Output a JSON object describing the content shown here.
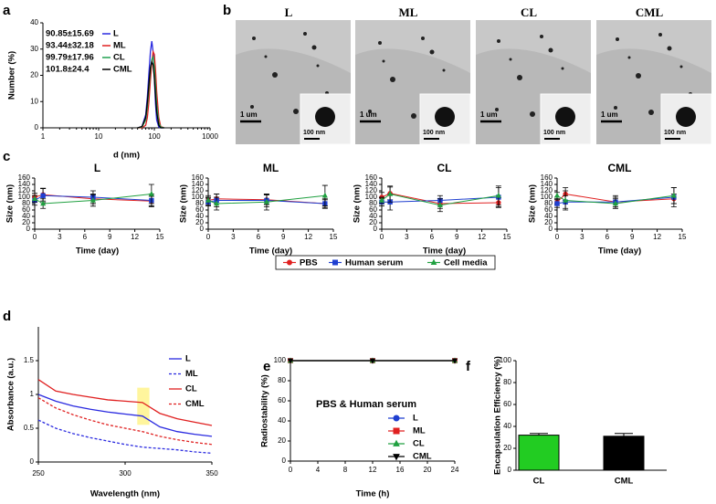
{
  "panel_labels": [
    "a",
    "b",
    "c",
    "d",
    "e",
    "f"
  ],
  "tem": {
    "titles": [
      "L",
      "ML",
      "CL",
      "CML"
    ],
    "scale_bar": "1 um",
    "inset_scale_bar": "100 nm"
  },
  "chart_data": [
    {
      "type": "line",
      "xlabel": "d (nm)",
      "ylabel": "Number (%)",
      "xscale": "log",
      "xlim": [
        1,
        1000
      ],
      "xticks": [
        1,
        10,
        100,
        1000
      ],
      "ylim": [
        0,
        40
      ],
      "yticks": [
        0,
        10,
        20,
        30,
        40
      ],
      "x": [
        50,
        60,
        70,
        75,
        80,
        85,
        90,
        95,
        100,
        105,
        110,
        120,
        130,
        150
      ],
      "series": [
        {
          "name": "L",
          "stat": "90.85±15.69",
          "color": "#2a2ae0",
          "values": [
            0,
            0.5,
            5,
            12,
            21,
            29,
            33,
            29,
            19,
            9,
            3,
            0.3,
            0,
            0
          ]
        },
        {
          "name": "ML",
          "stat": "93.44±32.18",
          "color": "#e02020",
          "values": [
            0,
            0,
            1,
            4,
            10,
            18,
            25,
            29,
            28,
            22,
            14,
            4,
            0.5,
            0
          ]
        },
        {
          "name": "CL",
          "stat": "99.79±17.96",
          "color": "#20a050",
          "values": [
            0,
            0.3,
            3,
            8,
            15,
            22,
            26,
            27,
            23,
            16,
            9,
            2,
            0.3,
            0
          ]
        },
        {
          "name": "CML",
          "stat": "101.8±24.4",
          "color": "#000000",
          "values": [
            0,
            0.5,
            4,
            10,
            17,
            23,
            25,
            24,
            19,
            12,
            6,
            1,
            0,
            0
          ]
        }
      ]
    },
    {
      "type": "errorline",
      "title": "L",
      "xlabel": "Time (day)",
      "ylabel": "Size (nm)",
      "xlim": [
        0,
        15
      ],
      "xticks": [
        0,
        3,
        6,
        9,
        12,
        15
      ],
      "ylim": [
        0,
        160
      ],
      "yticks": [
        0,
        20,
        40,
        60,
        80,
        100,
        120,
        140,
        160
      ],
      "x": [
        0,
        1,
        7,
        14
      ],
      "series": [
        {
          "name": "PBS",
          "color": "#e02020",
          "marker": "circle",
          "values": [
            100,
            108,
            95,
            88
          ],
          "errors": [
            12,
            20,
            15,
            15
          ]
        },
        {
          "name": "Human serum",
          "color": "#1f3fd0",
          "marker": "square",
          "values": [
            90,
            105,
            100,
            90
          ],
          "errors": [
            15,
            22,
            20,
            20
          ]
        },
        {
          "name": "Cell media",
          "color": "#20a040",
          "marker": "triangle",
          "values": [
            95,
            80,
            90,
            110
          ],
          "errors": [
            10,
            15,
            18,
            30
          ]
        }
      ]
    },
    {
      "type": "errorline",
      "title": "ML",
      "xlabel": "Time (day)",
      "ylabel": "Size (nm)",
      "xlim": [
        0,
        15
      ],
      "xticks": [
        0,
        3,
        6,
        9,
        12,
        15
      ],
      "ylim": [
        0,
        160
      ],
      "yticks": [
        0,
        20,
        40,
        60,
        80,
        100,
        120,
        140,
        160
      ],
      "x": [
        0,
        1,
        7,
        14
      ],
      "series": [
        {
          "name": "PBS",
          "color": "#e02020",
          "marker": "circle",
          "values": [
            90,
            95,
            92,
            80
          ],
          "errors": [
            10,
            15,
            15,
            12
          ]
        },
        {
          "name": "Human serum",
          "color": "#1f3fd0",
          "marker": "square",
          "values": [
            85,
            90,
            90,
            80
          ],
          "errors": [
            12,
            20,
            20,
            15
          ]
        },
        {
          "name": "Cell media",
          "color": "#20a040",
          "marker": "triangle",
          "values": [
            90,
            80,
            85,
            105
          ],
          "errors": [
            15,
            20,
            25,
            32
          ]
        }
      ]
    },
    {
      "type": "errorline",
      "title": "CL",
      "xlabel": "Time (day)",
      "ylabel": "Size (nm)",
      "xlim": [
        0,
        15
      ],
      "xticks": [
        0,
        3,
        6,
        9,
        12,
        15
      ],
      "ylim": [
        0,
        160
      ],
      "yticks": [
        0,
        20,
        40,
        60,
        80,
        100,
        120,
        140,
        160
      ],
      "x": [
        0,
        1,
        7,
        14
      ],
      "series": [
        {
          "name": "PBS",
          "color": "#e02020",
          "marker": "circle",
          "values": [
            100,
            112,
            80,
            83
          ],
          "errors": [
            15,
            20,
            15,
            15
          ]
        },
        {
          "name": "Human serum",
          "color": "#1f3fd0",
          "marker": "square",
          "values": [
            85,
            85,
            90,
            100
          ],
          "errors": [
            12,
            25,
            15,
            30
          ]
        },
        {
          "name": "Cell media",
          "color": "#20a040",
          "marker": "triangle",
          "values": [
            90,
            110,
            75,
            105
          ],
          "errors": [
            10,
            25,
            20,
            30
          ]
        }
      ]
    },
    {
      "type": "errorline",
      "title": "CML",
      "xlabel": "Time (day)",
      "ylabel": "Size (nm)",
      "xlim": [
        0,
        15
      ],
      "xticks": [
        0,
        3,
        6,
        9,
        12,
        15
      ],
      "ylim": [
        0,
        160
      ],
      "yticks": [
        0,
        20,
        40,
        60,
        80,
        100,
        120,
        140,
        160
      ],
      "x": [
        0,
        1,
        7,
        14
      ],
      "series": [
        {
          "name": "PBS",
          "color": "#e02020",
          "marker": "circle",
          "values": [
            85,
            110,
            85,
            95
          ],
          "errors": [
            10,
            20,
            15,
            15
          ]
        },
        {
          "name": "Human serum",
          "color": "#1f3fd0",
          "marker": "square",
          "values": [
            80,
            85,
            85,
            100
          ],
          "errors": [
            12,
            20,
            20,
            30
          ]
        },
        {
          "name": "Cell media",
          "color": "#20a040",
          "marker": "triangle",
          "values": [
            105,
            90,
            80,
            105
          ],
          "errors": [
            10,
            30,
            15,
            25
          ]
        }
      ]
    },
    {
      "type": "line",
      "xlabel": "Wavelength (nm)",
      "ylabel": "Absorbance (a.u.)",
      "xlim": [
        250,
        350
      ],
      "xticks": [
        250,
        300,
        350
      ],
      "ylim": [
        0,
        2
      ],
      "yticks": [
        0,
        0.5,
        1,
        1.5
      ],
      "highlight": {
        "x": [
          307,
          314
        ],
        "y": [
          0.55,
          1.1
        ],
        "color": "#fff59d"
      },
      "x": [
        250,
        260,
        270,
        280,
        290,
        300,
        310,
        320,
        330,
        340,
        350
      ],
      "series": [
        {
          "name": "L",
          "color": "#2a2ae0",
          "dash": false,
          "values": [
            1.0,
            0.9,
            0.83,
            0.78,
            0.74,
            0.71,
            0.68,
            0.52,
            0.45,
            0.41,
            0.38
          ]
        },
        {
          "name": "ML",
          "color": "#2a2ae0",
          "dash": true,
          "values": [
            0.62,
            0.5,
            0.42,
            0.36,
            0.31,
            0.26,
            0.22,
            0.2,
            0.18,
            0.15,
            0.13
          ]
        },
        {
          "name": "CL",
          "color": "#e02020",
          "dash": false,
          "values": [
            1.22,
            1.05,
            1.0,
            0.96,
            0.92,
            0.9,
            0.88,
            0.72,
            0.64,
            0.59,
            0.54
          ]
        },
        {
          "name": "CML",
          "color": "#e02020",
          "dash": true,
          "values": [
            0.95,
            0.8,
            0.7,
            0.62,
            0.55,
            0.5,
            0.45,
            0.38,
            0.33,
            0.29,
            0.26
          ]
        }
      ]
    },
    {
      "type": "markerline",
      "xlabel": "Time (h)",
      "ylabel": "Radiostability (%)",
      "annotation": "PBS & Human serum",
      "xlim": [
        0,
        24
      ],
      "xticks": [
        0,
        4,
        8,
        12,
        16,
        20,
        24
      ],
      "ylim": [
        0,
        100
      ],
      "yticks": [
        0,
        20,
        40,
        60,
        80,
        100
      ],
      "x": [
        0,
        12,
        24
      ],
      "series": [
        {
          "name": "L",
          "color": "#1f3fd0",
          "marker": "circle",
          "values": [
            100,
            100,
            100
          ]
        },
        {
          "name": "ML",
          "color": "#e02020",
          "marker": "square",
          "values": [
            100,
            100,
            100
          ]
        },
        {
          "name": "CL",
          "color": "#20a040",
          "marker": "triangle",
          "values": [
            100,
            100,
            100
          ]
        },
        {
          "name": "CML",
          "color": "#000000",
          "marker": "triangle-down",
          "values": [
            100,
            100,
            100
          ]
        }
      ]
    },
    {
      "type": "bar",
      "ylabel": "Encapsulation Efficiency (%)",
      "ylim": [
        0,
        100
      ],
      "yticks": [
        0,
        20,
        40,
        60,
        80,
        100
      ],
      "categories": [
        "CL",
        "CML"
      ],
      "values": [
        32,
        31
      ],
      "errors": [
        1.5,
        2.5
      ],
      "colors": [
        "#22cc22",
        "#000000"
      ]
    }
  ]
}
